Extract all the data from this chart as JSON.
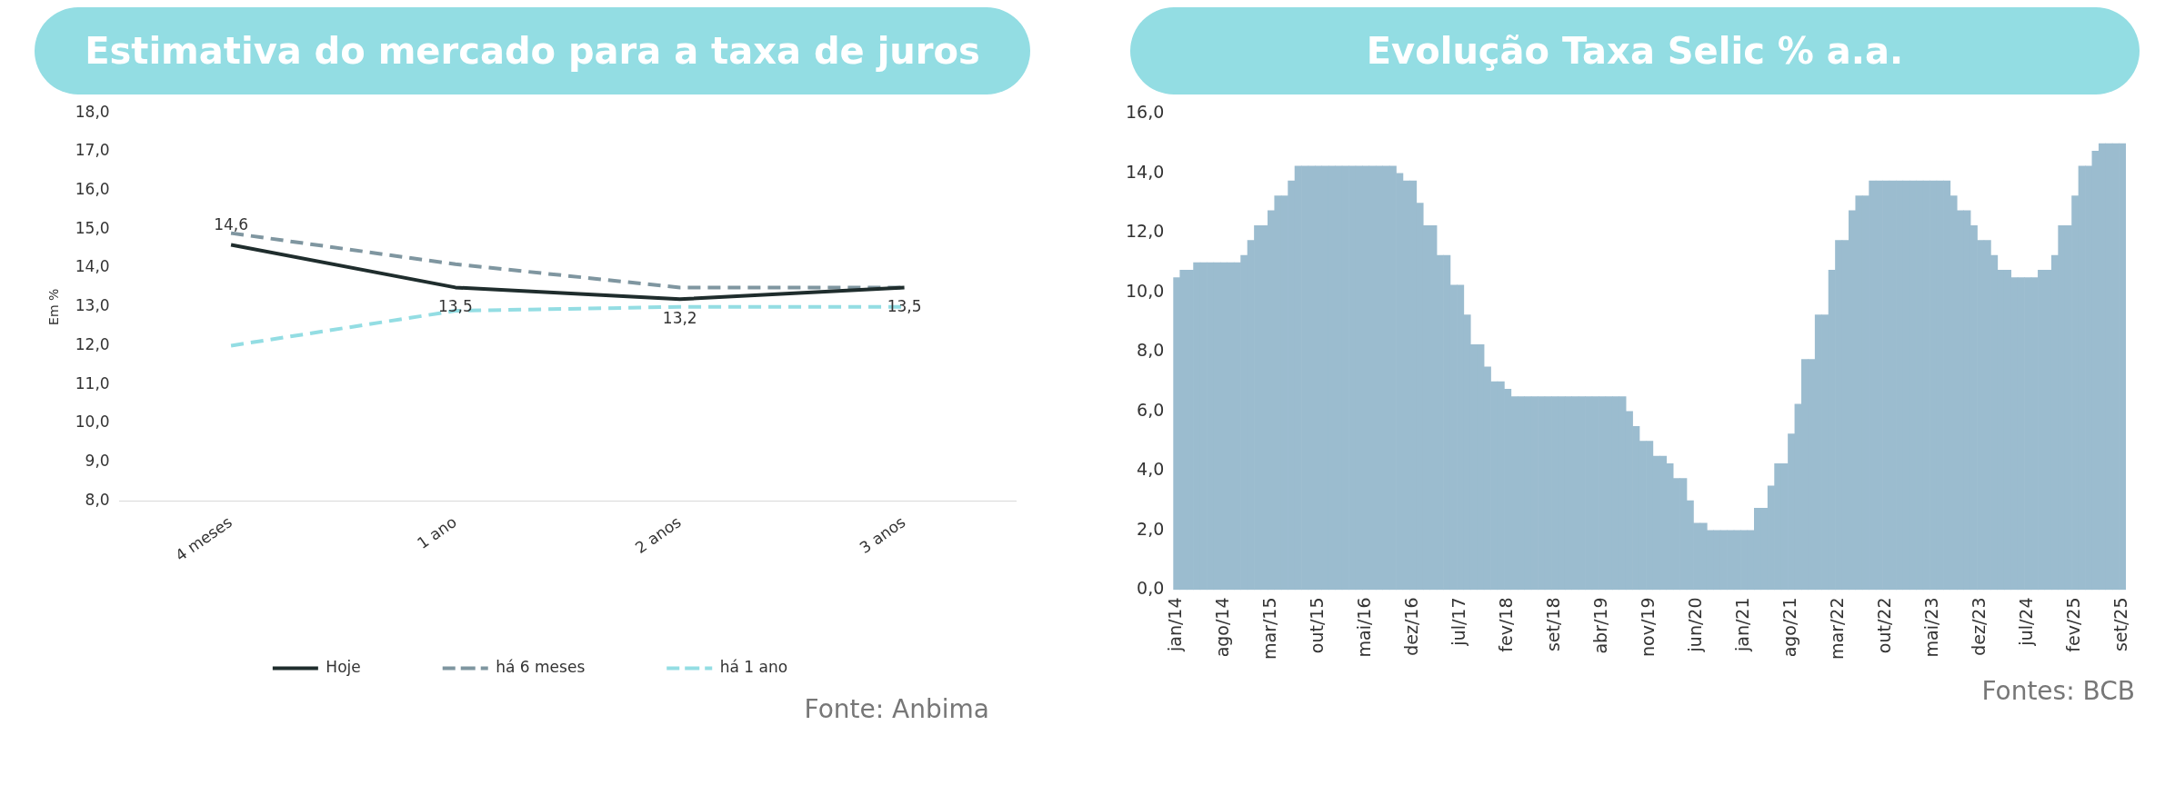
{
  "chart_data": [
    {
      "type": "line",
      "title": "Estimativa do mercado para a taxa de juros",
      "ylabel": "Em %",
      "categories": [
        "4 meses",
        "1 ano",
        "2 anos",
        "3 anos"
      ],
      "series": [
        {
          "name": "Hoje",
          "color": "#1f2d2d",
          "values": [
            14.6,
            13.5,
            13.2,
            13.5
          ],
          "value_labels": [
            "14,6",
            "13,5",
            "13,2",
            "13,5"
          ],
          "line_style": "solid"
        },
        {
          "name": "há 6 meses",
          "color": "#7f96a0",
          "values": [
            14.9,
            14.1,
            13.5,
            13.5
          ],
          "line_style": "dashed"
        },
        {
          "name": "há 1 ano",
          "color": "#93dde3",
          "values": [
            12.0,
            12.9,
            13.0,
            13.0
          ],
          "line_style": "dashed"
        }
      ],
      "ylim": [
        8,
        18
      ],
      "yticks": [
        {
          "value": 8,
          "label": "8,0"
        },
        {
          "value": 9,
          "label": "9,0"
        },
        {
          "value": 10,
          "label": "10,0"
        },
        {
          "value": 11,
          "label": "11,0"
        },
        {
          "value": 12,
          "label": "12,0"
        },
        {
          "value": 13,
          "label": "13,0"
        },
        {
          "value": 14,
          "label": "14,0"
        },
        {
          "value": 15,
          "label": "15,0"
        },
        {
          "value": 16,
          "label": "16,0"
        },
        {
          "value": 17,
          "label": "17,0"
        },
        {
          "value": 18,
          "label": "18,0"
        }
      ],
      "grid": false,
      "legend": "bottom",
      "marker": "none",
      "annotations": [
        "Fonte: Anbima"
      ]
    },
    {
      "type": "bar",
      "title": "Evolução Taxa Selic % a.a.",
      "color": "#9bbccf",
      "categories": [
        "jan/14",
        null,
        null,
        null,
        null,
        null,
        null,
        "ago/14",
        null,
        null,
        null,
        null,
        null,
        null,
        "mar/15",
        null,
        null,
        null,
        null,
        null,
        null,
        "out/15",
        null,
        null,
        null,
        null,
        null,
        null,
        "mai/16",
        null,
        null,
        null,
        null,
        null,
        null,
        "dez/16",
        null,
        null,
        null,
        null,
        null,
        null,
        "jul/17",
        null,
        null,
        null,
        null,
        null,
        null,
        "fev/18",
        null,
        null,
        null,
        null,
        null,
        null,
        "set/18",
        null,
        null,
        null,
        null,
        null,
        null,
        "abr/19",
        null,
        null,
        null,
        null,
        null,
        null,
        "nov/19",
        null,
        null,
        null,
        null,
        null,
        null,
        "jun/20",
        null,
        null,
        null,
        null,
        null,
        null,
        "jan/21",
        null,
        null,
        null,
        null,
        null,
        null,
        "ago/21",
        null,
        null,
        null,
        null,
        null,
        null,
        "mar/22",
        null,
        null,
        null,
        null,
        null,
        null,
        "out/22",
        null,
        null,
        null,
        null,
        null,
        null,
        "mai/23",
        null,
        null,
        null,
        null,
        null,
        null,
        "dez/23",
        null,
        null,
        null,
        null,
        null,
        null,
        "jul/24",
        null,
        null,
        null,
        null,
        null,
        null,
        "fev/25",
        null,
        null,
        null,
        null,
        null,
        null,
        "set/25"
      ],
      "values": [
        10.5,
        10.75,
        10.75,
        11,
        11,
        11,
        11,
        11,
        11,
        11,
        11.25,
        11.75,
        12.25,
        12.25,
        12.75,
        13.25,
        13.25,
        13.75,
        14.25,
        14.25,
        14.25,
        14.25,
        14.25,
        14.25,
        14.25,
        14.25,
        14.25,
        14.25,
        14.25,
        14.25,
        14.25,
        14.25,
        14.25,
        14,
        13.75,
        13.75,
        13,
        12.25,
        12.25,
        11.25,
        11.25,
        10.25,
        10.25,
        9.25,
        8.25,
        8.25,
        7.5,
        7,
        7,
        6.75,
        6.5,
        6.5,
        6.5,
        6.5,
        6.5,
        6.5,
        6.5,
        6.5,
        6.5,
        6.5,
        6.5,
        6.5,
        6.5,
        6.5,
        6.5,
        6.5,
        6.5,
        6,
        5.5,
        5,
        5,
        4.5,
        4.5,
        4.25,
        3.75,
        3.75,
        3,
        2.25,
        2.25,
        2,
        2,
        2,
        2,
        2,
        2,
        2,
        2.75,
        2.75,
        3.5,
        4.25,
        4.25,
        5.25,
        6.25,
        7.75,
        7.75,
        9.25,
        9.25,
        10.75,
        11.75,
        11.75,
        12.75,
        13.25,
        13.25,
        13.75,
        13.75,
        13.75,
        13.75,
        13.75,
        13.75,
        13.75,
        13.75,
        13.75,
        13.75,
        13.75,
        13.75,
        13.25,
        12.75,
        12.75,
        12.25,
        11.75,
        11.75,
        11.25,
        10.75,
        10.75,
        10.5,
        10.5,
        10.5,
        10.5,
        10.75,
        10.75,
        11.25,
        12.25,
        12.25,
        13.25,
        14.25,
        14.25,
        14.75,
        15,
        15,
        15,
        15
      ],
      "ylim": [
        0,
        16
      ],
      "yticks": [
        {
          "value": 0,
          "label": "0,0"
        },
        {
          "value": 2,
          "label": "2,0"
        },
        {
          "value": 4,
          "label": "4,0"
        },
        {
          "value": 6,
          "label": "6,0"
        },
        {
          "value": 8,
          "label": "8,0"
        },
        {
          "value": 10,
          "label": "10,0"
        },
        {
          "value": 12,
          "label": "12,0"
        },
        {
          "value": 14,
          "label": "14,0"
        },
        {
          "value": 16,
          "label": "16,0"
        }
      ],
      "grid": false,
      "legend": false,
      "annotations": [
        "Fontes: BCB"
      ]
    }
  ]
}
